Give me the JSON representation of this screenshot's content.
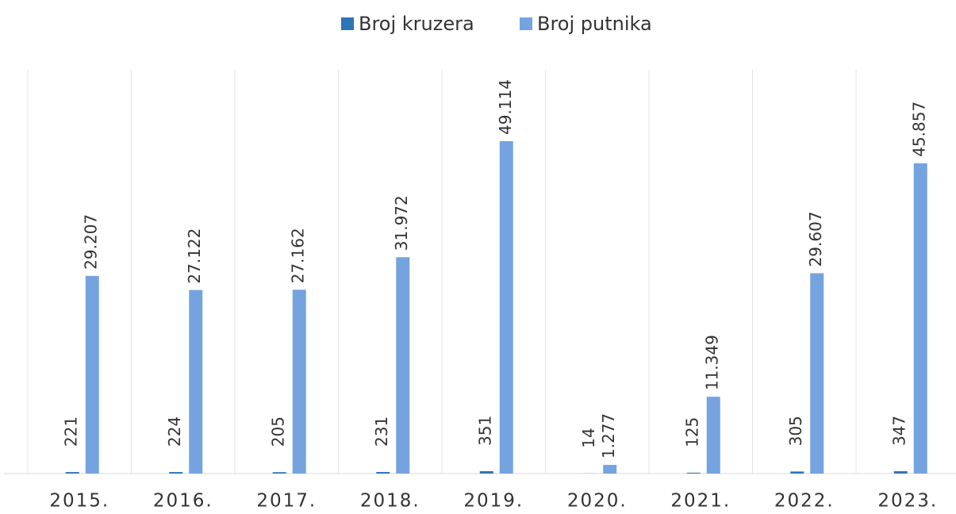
{
  "chart_data": {
    "type": "bar",
    "categories": [
      "2015.",
      "2016.",
      "2017.",
      "2018.",
      "2019.",
      "2020.",
      "2021.",
      "2022.",
      "2023."
    ],
    "series": [
      {
        "name": "Broj kruzera",
        "color": "#2e75b6",
        "values": [
          221,
          224,
          205,
          231,
          351,
          14,
          125,
          305,
          347
        ]
      },
      {
        "name": "Broj putnika",
        "color": "#75a3e0",
        "values": [
          29207,
          27122,
          27162,
          31972,
          49114,
          1277,
          11349,
          29607,
          45857
        ],
        "value_labels": [
          "29.207",
          "27.122",
          "27.162",
          "31.972",
          "49.114",
          "1.277",
          "11.349",
          "29.607",
          "45.857"
        ]
      }
    ],
    "grid": true,
    "legend": "top"
  }
}
